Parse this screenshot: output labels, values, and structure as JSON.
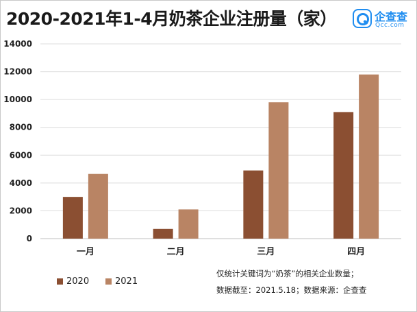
{
  "title": "2020-2021年1-4月奶茶企业注册量（家）",
  "logo": {
    "name": "企查查",
    "domain": "Qcc.com"
  },
  "notes": [
    "仅统计关键词为“奶茶”的相关企业数量；",
    "数据截至：2021.5.18；数据来源：企查查"
  ],
  "colors": {
    "s2020": "#8b4f32",
    "s2021": "#b98464",
    "grid": "#dcdcdc",
    "axis": "#bfbfbf"
  },
  "chart_data": {
    "type": "bar",
    "title": "2020-2021年1-4月奶茶企业注册量（家）",
    "categories": [
      "一月",
      "二月",
      "三月",
      "四月"
    ],
    "series": [
      {
        "name": "2020",
        "values": [
          3000,
          700,
          4900,
          9100
        ]
      },
      {
        "name": "2021",
        "values": [
          4650,
          2100,
          9800,
          11800
        ]
      }
    ],
    "ylim": [
      0,
      14000
    ],
    "yticks": [
      "0",
      "2000",
      "4000",
      "6000",
      "8000",
      "10000",
      "12000",
      "14000"
    ],
    "grid": true,
    "legend": "bottom-left"
  }
}
